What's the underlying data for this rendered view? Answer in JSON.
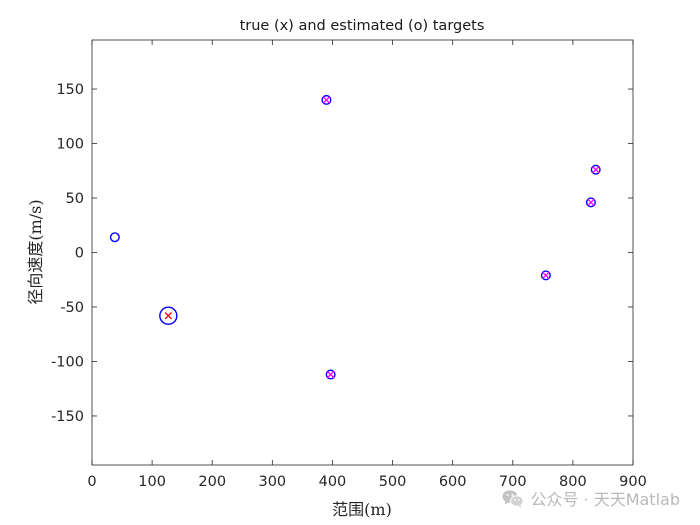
{
  "chart_data": {
    "type": "scatter",
    "title": "true (x) and estimated (o) targets",
    "xlabel": "范围(m)",
    "ylabel": "径向速度(m/s)",
    "xlim": [
      0,
      900
    ],
    "ylim": [
      -195,
      195
    ],
    "xticks": [
      0,
      100,
      200,
      300,
      400,
      500,
      600,
      700,
      800,
      900
    ],
    "yticks": [
      -150,
      -100,
      -50,
      0,
      50,
      100,
      150
    ],
    "grid": false,
    "series": [
      {
        "marker": "o",
        "color": "#0000ff",
        "points": [
          {
            "x": 38,
            "y": 14,
            "size": "small"
          },
          {
            "x": 127,
            "y": -58,
            "size": "large"
          },
          {
            "x": 390,
            "y": 140,
            "size": "small"
          },
          {
            "x": 397,
            "y": -112,
            "size": "small"
          },
          {
            "x": 755,
            "y": -21,
            "size": "small"
          },
          {
            "x": 830,
            "y": 46,
            "size": "small"
          },
          {
            "x": 838,
            "y": 76,
            "size": "small"
          }
        ]
      },
      {
        "marker": "x",
        "color": "#ff00ff",
        "points": [
          {
            "x": 390,
            "y": 140
          },
          {
            "x": 397,
            "y": -112
          },
          {
            "x": 755,
            "y": -21
          },
          {
            "x": 830,
            "y": 46
          },
          {
            "x": 838,
            "y": 76
          }
        ]
      },
      {
        "marker": "x",
        "color": "#ff0000",
        "points": [
          {
            "x": 127,
            "y": -58
          }
        ]
      }
    ]
  },
  "watermark": {
    "text": "公众号 · 天天Matlab",
    "icon": "wechat-icon",
    "color": "#b9b9b9"
  }
}
